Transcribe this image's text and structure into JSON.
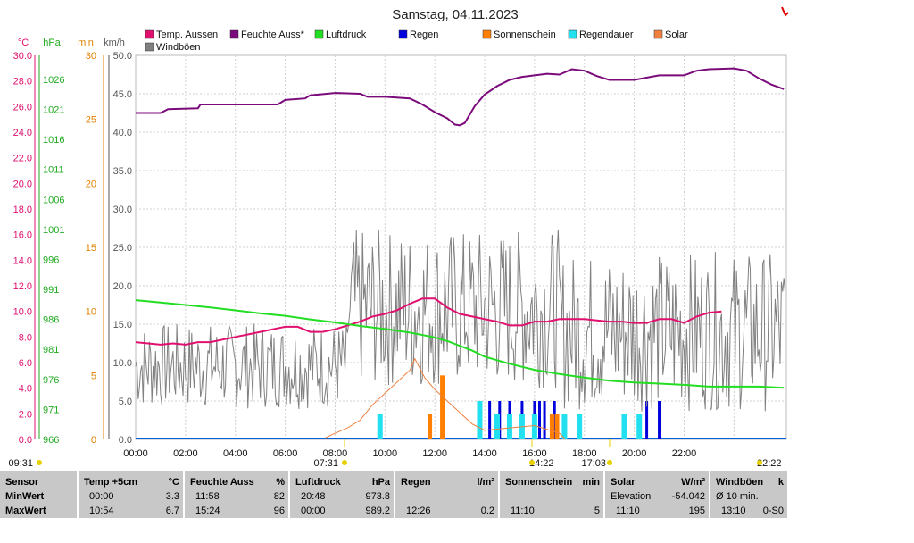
{
  "title": "Samstag, 04.11.2023",
  "axes": {
    "temp_unit": "°C",
    "press_unit": "hPa",
    "min_unit": "min",
    "kmh_unit": "km/h",
    "temp_ticks": [
      "0.0",
      "2.0",
      "4.0",
      "6.0",
      "8.0",
      "10.0",
      "12.0",
      "14.0",
      "16.0",
      "18.0",
      "20.0",
      "22.0",
      "24.0",
      "26.0",
      "28.0",
      "30.0"
    ],
    "press_ticks": [
      "966",
      "971",
      "976",
      "981",
      "986",
      "991",
      "996",
      "1001",
      "1006",
      "1011",
      "1016",
      "1021",
      "1026"
    ],
    "min_ticks": [
      "0",
      "5",
      "10",
      "15",
      "20",
      "25",
      "30"
    ],
    "kmh_ticks": [
      "0.0",
      "5.0",
      "10.0",
      "15.0",
      "20.0",
      "25.0",
      "30.0",
      "35.0",
      "40.0",
      "45.0",
      "50.0"
    ],
    "time_ticks": [
      "00:00",
      "02:00",
      "04:00",
      "06:00",
      "08:00",
      "10:00",
      "12:00",
      "14:00",
      "16:00",
      "18:00",
      "20:00",
      "22:00"
    ]
  },
  "markers": {
    "left": "09:31",
    "sunrise": "07:31",
    "noon": "14:22",
    "sunset": "17:03",
    "right": "22:22"
  },
  "legend": [
    {
      "label": "Temp. Aussen",
      "color": "#e0106f"
    },
    {
      "label": "Feuchte Auss*",
      "color": "#7b0a7b"
    },
    {
      "label": "Luftdruck",
      "color": "#22dd22"
    },
    {
      "label": "Regen",
      "color": "#0000dd"
    },
    {
      "label": "Sonnenschein",
      "color": "#ff8000"
    },
    {
      "label": "Regendauer",
      "color": "#22e0f0"
    },
    {
      "label": "Solar",
      "color": "#f08040"
    },
    {
      "label": "Windböen",
      "color": "#808080"
    }
  ],
  "colors": {
    "temp": "#e0106f",
    "humid": "#7b0a7b",
    "press": "#22dd22",
    "min": "#e08000",
    "kmh": "#555555",
    "mark": "#e8d000",
    "corner": "#e00000"
  },
  "table": {
    "row_labels": {
      "header": "Sensor",
      "min": "MinWert",
      "max": "MaxWert"
    },
    "columns": [
      {
        "name": "Temp +5cm",
        "unit": "°C",
        "min_time": "00:00",
        "min_val": "3.3",
        "max_time": "10:54",
        "max_val": "6.7"
      },
      {
        "name": "Feuchte Auss",
        "unit": "%",
        "min_time": "11:58",
        "min_val": "82",
        "max_time": "15:24",
        "max_val": "96"
      },
      {
        "name": "Luftdruck",
        "unit": "hPa",
        "min_time": "20:48",
        "min_val": "973.8",
        "max_time": "00:00",
        "max_val": "989.2"
      },
      {
        "name": "Regen",
        "unit": "l/m²",
        "min_time": "",
        "min_val": "",
        "max_time": "12:26",
        "max_val": "0.2"
      },
      {
        "name": "Sonnenschein",
        "unit": "min",
        "min_time": "",
        "min_val": "",
        "max_time": "11:10",
        "max_val": "5"
      },
      {
        "name": "Solar",
        "unit": "W/m²",
        "min_time": "Elevation",
        "min_val": "-54.042",
        "max_time": "11:10",
        "max_val": "195"
      },
      {
        "name": "Windböen",
        "unit": "k",
        "min_time": "Ø 10 min.",
        "min_val": "",
        "max_time": "13:10",
        "max_val": "0-S0"
      }
    ]
  },
  "chart_data": {
    "type": "line",
    "title": "Samstag, 04.11.2023",
    "x_axis": {
      "unit": "hours",
      "ticks": [
        "00:00",
        "02:00",
        "04:00",
        "06:00",
        "08:00",
        "10:00",
        "12:00",
        "14:00",
        "16:00",
        "18:00",
        "20:00",
        "22:00"
      ]
    },
    "series": [
      {
        "name": "Temp. Aussen",
        "unit": "°C",
        "axis": "temp",
        "ylim": [
          0,
          30
        ],
        "points": [
          [
            0,
            7.6
          ],
          [
            0.5,
            7.5
          ],
          [
            1,
            7.4
          ],
          [
            1.5,
            7.5
          ],
          [
            2,
            7.4
          ],
          [
            2.5,
            7.6
          ],
          [
            3,
            7.6
          ],
          [
            3.5,
            7.8
          ],
          [
            4,
            8.0
          ],
          [
            4.5,
            8.2
          ],
          [
            5,
            8.4
          ],
          [
            5.5,
            8.6
          ],
          [
            6,
            8.8
          ],
          [
            6.5,
            8.8
          ],
          [
            7,
            8.4
          ],
          [
            7.5,
            8.4
          ],
          [
            8,
            8.6
          ],
          [
            8.5,
            8.9
          ],
          [
            9,
            9.2
          ],
          [
            9.5,
            9.6
          ],
          [
            10,
            9.8
          ],
          [
            10.5,
            10.1
          ],
          [
            11,
            10.6
          ],
          [
            11.5,
            11.0
          ],
          [
            12,
            11.0
          ],
          [
            12.5,
            10.3
          ],
          [
            13,
            9.8
          ],
          [
            13.5,
            9.6
          ],
          [
            14,
            9.4
          ],
          [
            14.5,
            9.2
          ],
          [
            15,
            8.9
          ],
          [
            15.5,
            8.9
          ],
          [
            16,
            9.2
          ],
          [
            16.5,
            9.2
          ],
          [
            17,
            9.4
          ],
          [
            17.5,
            9.4
          ],
          [
            18,
            9.4
          ],
          [
            18.5,
            9.3
          ],
          [
            19,
            9.2
          ],
          [
            19.5,
            9.2
          ],
          [
            20,
            9.1
          ],
          [
            20.5,
            9.1
          ],
          [
            21,
            9.4
          ],
          [
            21.5,
            9.4
          ],
          [
            22,
            9.1
          ],
          [
            22.5,
            9.6
          ],
          [
            23,
            9.9
          ],
          [
            23.5,
            10.0
          ]
        ]
      },
      {
        "name": "Feuchte Auss*",
        "unit": "%",
        "axis": "kmh-scaled",
        "ylim": [
          0,
          50
        ],
        "points": [
          [
            0,
            42.5
          ],
          [
            1,
            42.5
          ],
          [
            1.3,
            43.0
          ],
          [
            2.5,
            43.1
          ],
          [
            2.6,
            43.6
          ],
          [
            5.7,
            43.6
          ],
          [
            6,
            44.2
          ],
          [
            6.8,
            44.4
          ],
          [
            7,
            44.8
          ],
          [
            8,
            45.1
          ],
          [
            9,
            45.0
          ],
          [
            9.3,
            44.6
          ],
          [
            10,
            44.6
          ],
          [
            11,
            44.4
          ],
          [
            11.5,
            43.6
          ],
          [
            12,
            42.6
          ],
          [
            12.5,
            41.8
          ],
          [
            12.8,
            41.0
          ],
          [
            13,
            40.9
          ],
          [
            13.2,
            41.2
          ],
          [
            13.6,
            43.4
          ],
          [
            14,
            44.9
          ],
          [
            14.5,
            46.0
          ],
          [
            15,
            46.8
          ],
          [
            15.5,
            47.2
          ],
          [
            16,
            47.4
          ],
          [
            16.5,
            47.6
          ],
          [
            17,
            47.5
          ],
          [
            17.5,
            48.2
          ],
          [
            18,
            48.0
          ],
          [
            18.5,
            47.3
          ],
          [
            19,
            46.8
          ],
          [
            20,
            46.8
          ],
          [
            21,
            47.4
          ],
          [
            22,
            47.4
          ],
          [
            22.5,
            48.0
          ],
          [
            23,
            48.2
          ],
          [
            24,
            48.3
          ],
          [
            24.5,
            48.0
          ],
          [
            25,
            47.0
          ],
          [
            25.5,
            46.2
          ],
          [
            26,
            45.6
          ]
        ]
      },
      {
        "name": "Luftdruck",
        "unit": "hPa",
        "axis": "press",
        "ylim": [
          966,
          1030
        ],
        "points": [
          [
            0,
            989.2
          ],
          [
            1,
            988.8
          ],
          [
            2,
            988.4
          ],
          [
            3,
            988.0
          ],
          [
            4,
            987.5
          ],
          [
            5,
            987.0
          ],
          [
            6,
            986.6
          ],
          [
            7,
            986.0
          ],
          [
            8,
            985.5
          ],
          [
            9,
            984.9
          ],
          [
            10,
            984.4
          ],
          [
            11,
            983.8
          ],
          [
            12,
            983.0
          ],
          [
            12.5,
            982.4
          ],
          [
            13,
            981.6
          ],
          [
            13.5,
            980.8
          ],
          [
            14,
            979.8
          ],
          [
            14.5,
            979.2
          ],
          [
            15,
            978.6
          ],
          [
            16,
            977.6
          ],
          [
            17,
            976.9
          ],
          [
            18,
            976.3
          ],
          [
            19,
            975.8
          ],
          [
            20,
            975.5
          ],
          [
            21,
            975.3
          ],
          [
            22,
            975.1
          ],
          [
            23,
            974.8
          ],
          [
            24,
            974.8
          ],
          [
            25,
            974.8
          ],
          [
            26,
            974.6
          ]
        ]
      },
      {
        "name": "Windböen",
        "unit": "km/h",
        "axis": "kmh",
        "ylim": [
          0,
          50
        ],
        "profile": "noisy gusts between 3 and 35 km/h"
      }
    ],
    "bars": [
      {
        "name": "Regen",
        "axis": "min",
        "times": [
          13.8,
          14.2,
          14.6,
          15.0,
          15.5,
          16.0,
          16.2,
          16.4,
          16.8,
          20.5,
          21.0
        ],
        "values": [
          3,
          3,
          3,
          3,
          3,
          3,
          3,
          3,
          3,
          3,
          3
        ]
      },
      {
        "name": "Sonnenschein",
        "axis": "min",
        "times": [
          11.8,
          12.3,
          16.7,
          16.9
        ],
        "values": [
          2,
          5,
          2,
          2
        ]
      },
      {
        "name": "Regendauer",
        "axis": "min",
        "times": [
          9.8,
          13.8,
          14.5,
          15.0,
          15.5,
          16.0,
          17.2,
          17.8,
          19.6,
          20.2
        ],
        "values": [
          2,
          3,
          2,
          2,
          2,
          2,
          2,
          2,
          2,
          2
        ]
      }
    ]
  }
}
